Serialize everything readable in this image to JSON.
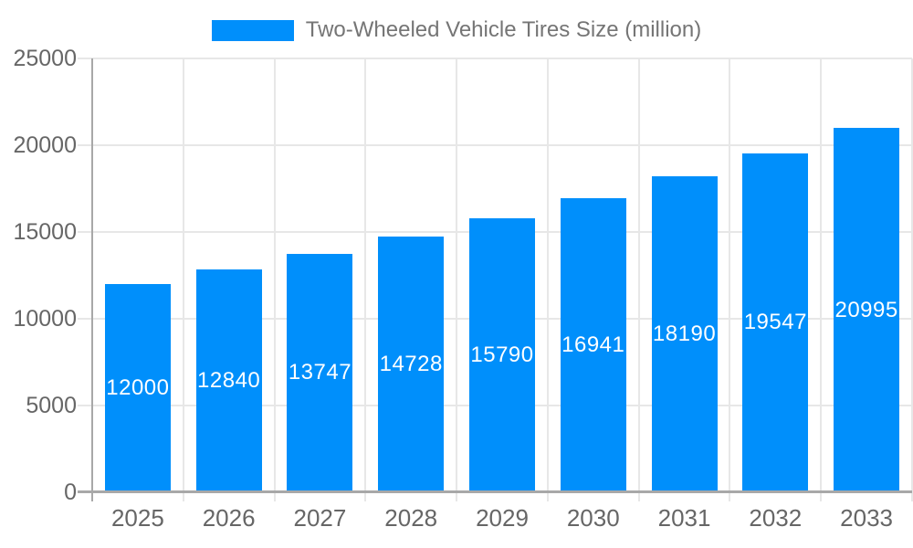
{
  "chart_data": {
    "type": "bar",
    "categories": [
      "2025",
      "2026",
      "2027",
      "2028",
      "2029",
      "2030",
      "2031",
      "2032",
      "2033"
    ],
    "series": [
      {
        "name": "Two-Wheeled Vehicle Tires Size (million)",
        "values": [
          12000,
          12840,
          13747,
          14728,
          15790,
          16941,
          18190,
          19547,
          20995
        ]
      }
    ],
    "title": "",
    "xlabel": "",
    "ylabel": "",
    "ylim": [
      0,
      25000
    ],
    "yticks": [
      0,
      5000,
      10000,
      15000,
      20000,
      25000
    ],
    "grid": "on",
    "legend_position": "top",
    "data_labels_position": "inside-center",
    "colors": {
      "bar": "#008ffb",
      "grid": "#e7e7e7",
      "axis": "#a8a8a8",
      "tick_label": "#666666",
      "legend_text": "#757575",
      "data_label": "#ffffff",
      "background": "#ffffff"
    }
  }
}
